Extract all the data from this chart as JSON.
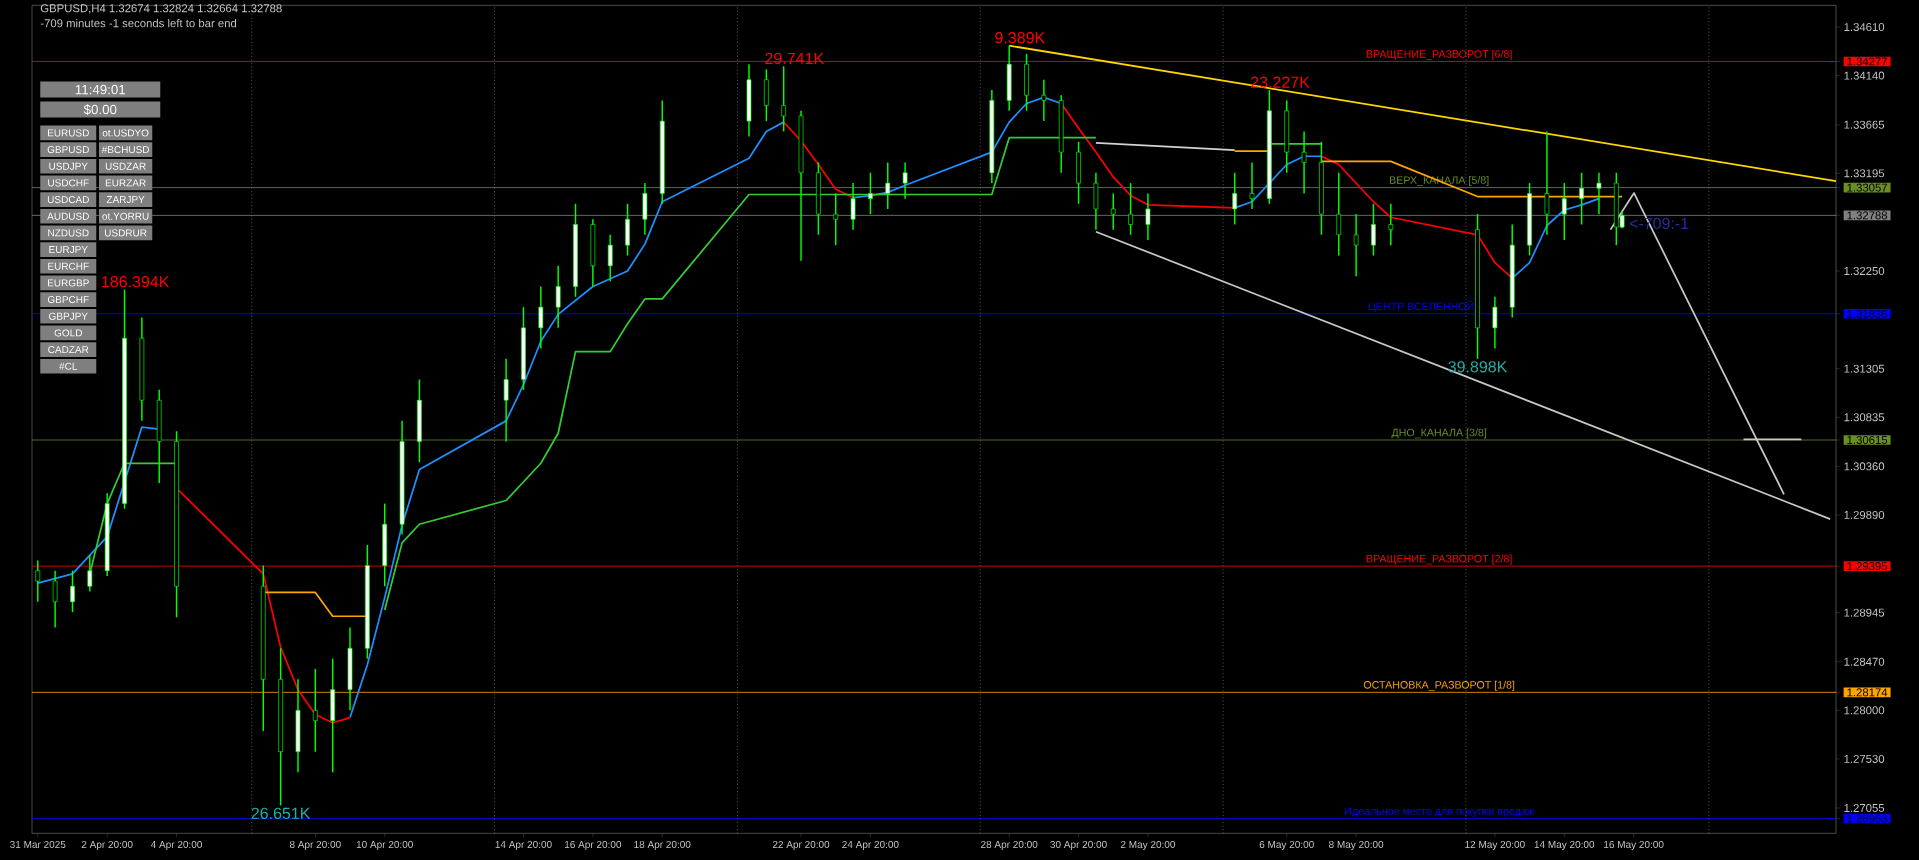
{
  "chart_data": {
    "type": "candlestick",
    "title": "GBPUSD,H4 1.32674 1.32824 1.32664 1.32788",
    "subtitle": "-709 minutes -1 seconds left to bar end",
    "color": "#00ff00",
    "x": [
      "2025-03-31T20:00",
      "2025-04-01T08:00",
      "2025-04-01T20:00",
      "2025-04-02T08:00",
      "2025-04-02T20:00",
      "2025-04-03T08:00",
      "2025-04-03T20:00",
      "2025-04-04T08:00",
      "2025-04-04T20:00",
      "2025-04-07T08:00",
      "2025-04-07T20:00",
      "2025-04-08T08:00",
      "2025-04-08T20:00",
      "2025-04-09T08:00",
      "2025-04-09T20:00",
      "2025-04-10T08:00",
      "2025-04-10T20:00",
      "2025-04-11T08:00",
      "2025-04-11T20:00",
      "2025-04-14T08:00",
      "2025-04-14T20:00",
      "2025-04-15T08:00",
      "2025-04-15T20:00",
      "2025-04-16T08:00",
      "2025-04-16T20:00",
      "2025-04-17T08:00",
      "2025-04-17T20:00",
      "2025-04-18T08:00",
      "2025-04-18T20:00",
      "2025-04-21T08:00",
      "2025-04-21T20:00",
      "2025-04-22T08:00",
      "2025-04-22T20:00",
      "2025-04-23T08:00",
      "2025-04-23T20:00",
      "2025-04-24T08:00",
      "2025-04-24T20:00",
      "2025-04-25T08:00",
      "2025-04-25T20:00",
      "2025-04-28T08:00",
      "2025-04-28T20:00",
      "2025-04-29T08:00",
      "2025-04-29T20:00",
      "2025-04-30T08:00",
      "2025-04-30T20:00",
      "2025-05-01T08:00",
      "2025-05-01T20:00",
      "2025-05-02T08:00",
      "2025-05-02T20:00",
      "2025-05-05T08:00",
      "2025-05-05T20:00",
      "2025-05-06T08:00",
      "2025-05-06T20:00",
      "2025-05-07T08:00",
      "2025-05-07T20:00",
      "2025-05-08T08:00",
      "2025-05-08T20:00",
      "2025-05-09T08:00",
      "2025-05-09T20:00",
      "2025-05-12T08:00",
      "2025-05-12T20:00",
      "2025-05-13T08:00",
      "2025-05-13T20:00",
      "2025-05-14T08:00",
      "2025-05-14T20:00",
      "2025-05-15T08:00",
      "2025-05-15T20:00",
      "2025-05-16T08:00",
      "2025-05-16T12:00"
    ],
    "ohlc": [
      [
        1.2935,
        1.2945,
        1.2905,
        1.2925
      ],
      [
        1.2925,
        1.2935,
        1.288,
        1.2905
      ],
      [
        1.2905,
        1.2935,
        1.2895,
        1.292
      ],
      [
        1.292,
        1.295,
        1.2915,
        1.2935
      ],
      [
        1.2935,
        1.301,
        1.293,
        1.3
      ],
      [
        1.3,
        1.3207,
        1.2995,
        1.316
      ],
      [
        1.316,
        1.318,
        1.308,
        1.31
      ],
      [
        1.31,
        1.311,
        1.302,
        1.306
      ],
      [
        1.306,
        1.307,
        1.289,
        1.292
      ],
      [
        1.292,
        1.294,
        1.278,
        1.283
      ],
      [
        1.283,
        1.286,
        1.2708,
        1.276
      ],
      [
        1.276,
        1.283,
        1.274,
        1.28
      ],
      [
        1.28,
        1.284,
        1.276,
        1.279
      ],
      [
        1.279,
        1.285,
        1.274,
        1.282
      ],
      [
        1.282,
        1.288,
        1.28,
        1.286
      ],
      [
        1.286,
        1.296,
        1.285,
        1.294
      ],
      [
        1.294,
        1.3,
        1.292,
        1.298
      ],
      [
        1.298,
        1.308,
        1.297,
        1.306
      ],
      [
        1.306,
        1.312,
        1.304,
        1.31
      ],
      [
        1.31,
        1.314,
        1.306,
        1.312
      ],
      [
        1.312,
        1.319,
        1.311,
        1.317
      ],
      [
        1.317,
        1.321,
        1.315,
        1.319
      ],
      [
        1.319,
        1.323,
        1.317,
        1.321
      ],
      [
        1.321,
        1.329,
        1.32,
        1.327
      ],
      [
        1.327,
        1.3275,
        1.321,
        1.323
      ],
      [
        1.323,
        1.326,
        1.3215,
        1.325
      ],
      [
        1.325,
        1.329,
        1.324,
        1.3275
      ],
      [
        1.3275,
        1.331,
        1.326,
        1.33
      ],
      [
        1.33,
        1.339,
        1.329,
        1.337
      ],
      [
        1.337,
        1.3425,
        1.3355,
        1.341
      ],
      [
        1.341,
        1.342,
        1.337,
        1.3385
      ],
      [
        1.3385,
        1.3423,
        1.336,
        1.3375
      ],
      [
        1.3375,
        1.338,
        1.3235,
        1.332
      ],
      [
        1.332,
        1.333,
        1.326,
        1.328
      ],
      [
        1.328,
        1.33,
        1.325,
        1.3275
      ],
      [
        1.3275,
        1.331,
        1.3265,
        1.3295
      ],
      [
        1.3295,
        1.332,
        1.328,
        1.33
      ],
      [
        1.33,
        1.333,
        1.3285,
        1.331
      ],
      [
        1.331,
        1.333,
        1.3295,
        1.332
      ],
      [
        1.332,
        1.34,
        1.331,
        1.339
      ],
      [
        1.339,
        1.3443,
        1.338,
        1.3425
      ],
      [
        1.3425,
        1.3435,
        1.338,
        1.3395
      ],
      [
        1.3395,
        1.341,
        1.337,
        1.339
      ],
      [
        1.339,
        1.3395,
        1.332,
        1.334
      ],
      [
        1.334,
        1.335,
        1.329,
        1.331
      ],
      [
        1.331,
        1.332,
        1.3265,
        1.3285
      ],
      [
        1.3285,
        1.33,
        1.3265,
        1.328
      ],
      [
        1.328,
        1.331,
        1.326,
        1.327
      ],
      [
        1.327,
        1.33,
        1.3255,
        1.3285
      ],
      [
        1.3285,
        1.332,
        1.327,
        1.33
      ],
      [
        1.33,
        1.333,
        1.3285,
        1.3295
      ],
      [
        1.3295,
        1.34,
        1.329,
        1.338
      ],
      [
        1.338,
        1.339,
        1.332,
        1.334
      ],
      [
        1.334,
        1.336,
        1.33,
        1.333
      ],
      [
        1.333,
        1.335,
        1.326,
        1.328
      ],
      [
        1.328,
        1.332,
        1.324,
        1.326
      ],
      [
        1.326,
        1.328,
        1.322,
        1.325
      ],
      [
        1.325,
        1.329,
        1.324,
        1.327
      ],
      [
        1.327,
        1.329,
        1.325,
        1.3265
      ],
      [
        1.3265,
        1.328,
        1.314,
        1.317
      ],
      [
        1.317,
        1.32,
        1.315,
        1.319
      ],
      [
        1.319,
        1.327,
        1.318,
        1.325
      ],
      [
        1.325,
        1.331,
        1.324,
        1.33
      ],
      [
        1.33,
        1.336,
        1.326,
        1.328
      ],
      [
        1.328,
        1.331,
        1.3255,
        1.3295
      ],
      [
        1.3295,
        1.332,
        1.327,
        1.3305
      ],
      [
        1.3305,
        1.332,
        1.328,
        1.331
      ],
      [
        1.331,
        1.332,
        1.325,
        1.32674
      ],
      [
        1.32674,
        1.32824,
        1.32664,
        1.32788
      ]
    ],
    "series": [
      {
        "type": "line",
        "color": "#1e90ff",
        "x": [
          "2025-03-31T20:00",
          "2025-04-01T20:00",
          "2025-04-02T20:00",
          "2025-04-03T20:00",
          "2025-04-04T08:00",
          "2025-04-04T20:00",
          "2025-04-09T20:00",
          "2025-04-10T08:00",
          "2025-04-10T20:00",
          "2025-04-11T08:00",
          "2025-04-11T20:00",
          "2025-04-14T08:00",
          "2025-04-14T20:00",
          "2025-04-15T08:00",
          "2025-04-15T20:00",
          "2025-04-16T20:00",
          "2025-04-17T20:00",
          "2025-04-18T08:00",
          "2025-04-18T20:00",
          "2025-04-21T08:00",
          "2025-04-21T20:00",
          "2025-04-22T08:00",
          "2025-04-22T20:00",
          "2025-04-24T08:00",
          "2025-04-24T20:00",
          "2025-04-25T08:00",
          "2025-04-25T20:00",
          "2025-04-28T08:00",
          "2025-04-28T20:00",
          "2025-04-29T08:00",
          "2025-04-29T20:00",
          "2025-04-30T08:00",
          "2025-04-30T20:00",
          "2025-05-05T08:00",
          "2025-05-05T20:00",
          "2025-05-06T08:00",
          "2025-05-06T20:00",
          "2025-05-07T08:00",
          "2025-05-07T20:00",
          "2025-05-08T08:00",
          "2025-05-13T08:00",
          "2025-05-13T20:00",
          "2025-05-14T08:00",
          "2025-05-14T20:00",
          "2025-05-15T08:00",
          "2025-05-15T20:00"
        ],
        "values": [
          1.2923,
          1.2932,
          1.2968,
          1.3074,
          1.3072,
          null,
          1.2793,
          1.2844,
          1.2909,
          1.2979,
          1.3033,
          1.308,
          1.3115,
          1.3157,
          1.3183,
          1.321,
          1.3225,
          1.3251,
          1.3292,
          1.3334,
          1.336,
          1.3369,
          null,
          1.3296,
          1.3298,
          1.3301,
          1.3308,
          1.334,
          1.3369,
          1.3387,
          1.3393,
          1.3387,
          null,
          1.3286,
          1.3292,
          1.331,
          1.3328,
          1.3336,
          1.3336,
          null,
          1.3218,
          1.3233,
          1.3269,
          1.3284,
          1.3289,
          1.3295
        ]
      },
      {
        "type": "line",
        "color": "#ff0000",
        "x": [
          "2025-04-04T20:00",
          "2025-04-07T08:00",
          "2025-04-07T20:00",
          "2025-04-08T08:00",
          "2025-04-08T20:00",
          "2025-04-09T08:00",
          "2025-04-09T20:00",
          "2025-04-10T08:00",
          "2025-04-22T08:00",
          "2025-04-22T20:00",
          "2025-04-23T08:00",
          "2025-04-23T20:00",
          "2025-04-24T08:00",
          "2025-04-24T20:00",
          "2025-04-30T08:00",
          "2025-04-30T20:00",
          "2025-05-01T08:00",
          "2025-05-01T20:00",
          "2025-05-02T08:00",
          "2025-05-02T20:00",
          "2025-05-05T08:00",
          "2025-05-05T20:00",
          "2025-05-07T20:00",
          "2025-05-08T08:00",
          "2025-05-08T20:00",
          "2025-05-09T08:00",
          "2025-05-09T20:00",
          "2025-05-12T08:00",
          "2025-05-12T20:00",
          "2025-05-13T08:00"
        ],
        "values": [
          1.3015,
          1.2932,
          1.2861,
          1.282,
          1.2796,
          1.2788,
          1.2793,
          null,
          1.3369,
          1.3351,
          1.3328,
          1.3304,
          1.3296,
          null,
          1.3387,
          1.3363,
          1.334,
          1.3316,
          1.3298,
          1.3289,
          1.3286,
          null,
          1.3336,
          1.3328,
          1.331,
          1.3292,
          1.3277,
          1.326,
          1.3233,
          1.3218
        ]
      },
      {
        "type": "line",
        "color": "#32cd32",
        "x": [
          "2025-04-02T08:00",
          "2025-04-02T20:00",
          "2025-04-03T08:00",
          "2025-04-04T20:00",
          "2025-04-07T08:00",
          "2025-04-10T20:00",
          "2025-04-11T08:00",
          "2025-04-11T20:00",
          "2025-04-14T08:00",
          "2025-04-14T20:00",
          "2025-04-15T08:00",
          "2025-04-15T20:00",
          "2025-04-16T08:00",
          "2025-04-17T08:00",
          "2025-04-17T20:00",
          "2025-04-18T08:00",
          "2025-04-18T20:00",
          "2025-04-21T08:00",
          "2025-04-28T08:00",
          "2025-04-28T20:00",
          "2025-05-01T08:00",
          "2025-05-01T20:00",
          "2025-05-06T08:00",
          "2025-05-07T20:00"
        ],
        "values": [
          1.2932,
          1.3,
          1.3039,
          1.3039,
          null,
          1.2897,
          1.2962,
          1.298,
          1.3003,
          1.3021,
          1.3039,
          1.3068,
          1.3147,
          1.3147,
          1.3174,
          1.3198,
          1.3198,
          1.3299,
          1.3299,
          1.3354,
          1.3354,
          null,
          1.3348,
          1.3348
        ]
      },
      {
        "type": "line",
        "color": "#ffa500",
        "x": [
          "2025-04-07T08:00",
          "2025-04-08T20:00",
          "2025-04-09T08:00",
          "2025-04-10T08:00",
          "2025-04-10T20:00",
          "2025-05-05T08:00",
          "2025-05-06T08:00",
          "2025-05-06T20:00",
          "2025-05-07T20:00",
          "2025-05-09T20:00",
          "2025-05-12T08:00",
          "2025-05-16T12:00"
        ],
        "values": [
          1.2914,
          1.2914,
          1.2891,
          1.2891,
          null,
          1.3341,
          1.3341,
          null,
          1.3331,
          1.3331,
          1.3297,
          1.3297
        ]
      },
      {
        "type": "line",
        "color": "#d3d3d3",
        "x": [
          "2025-05-01T08:00",
          "2025-05-05T08:00"
        ],
        "values": [
          1.3349,
          1.3342
        ]
      },
      {
        "type": "line",
        "color": "#ffd700",
        "x": [
          "2025-04-28T20:00",
          "2025-05-22T16:00"
        ],
        "values": [
          1.3443,
          1.3312
        ]
      },
      {
        "type": "line",
        "color": "#c8c8c8",
        "x": [
          "2025-05-01T08:00",
          "2025-05-22T12:00"
        ],
        "values": [
          1.3263,
          1.2985
        ]
      },
      {
        "type": "line",
        "color": "#c8c8c8",
        "x": [
          "2025-05-16T04:00",
          "2025-05-16T20:00"
        ],
        "values": [
          1.3265,
          1.33
        ]
      },
      {
        "type": "line",
        "color": "#c8c8c8",
        "x": [
          "2025-05-16T20:00",
          "2025-05-21T04:00"
        ],
        "values": [
          1.3301,
          1.3009
        ]
      },
      {
        "type": "line",
        "color": "#c8c8c8",
        "x": [
          "2025-05-20T00:00",
          "2025-05-21T16:00"
        ],
        "values": [
          1.3062,
          1.3062
        ]
      }
    ],
    "xlim": [
      "2025-03-31T16:00",
      "2025-05-22T16:00"
    ],
    "xticks": [
      {
        "value": "2025-03-31T20:00",
        "label": "31 Mar 2025"
      },
      {
        "value": "2025-04-02T20:00",
        "label": "2 Apr 20:00"
      },
      {
        "value": "2025-04-04T20:00",
        "label": "4 Apr 20:00"
      },
      {
        "value": "2025-04-08T20:00",
        "label": "8 Apr 20:00"
      },
      {
        "value": "2025-04-10T20:00",
        "label": "10 Apr 20:00"
      },
      {
        "value": "2025-04-14T20:00",
        "label": "14 Apr 20:00"
      },
      {
        "value": "2025-04-16T20:00",
        "label": "16 Apr 20:00"
      },
      {
        "value": "2025-04-18T20:00",
        "label": "18 Apr 20:00"
      },
      {
        "value": "2025-04-22T20:00",
        "label": "22 Apr 20:00"
      },
      {
        "value": "2025-04-24T20:00",
        "label": "24 Apr 20:00"
      },
      {
        "value": "2025-04-28T20:00",
        "label": "28 Apr 20:00"
      },
      {
        "value": "2025-04-30T20:00",
        "label": "30 Apr 20:00"
      },
      {
        "value": "2025-05-02T20:00",
        "label": "2 May 20:00"
      },
      {
        "value": "2025-05-06T20:00",
        "label": "6 May 20:00"
      },
      {
        "value": "2025-05-08T20:00",
        "label": "8 May 20:00"
      },
      {
        "value": "2025-05-12T20:00",
        "label": "12 May 20:00"
      },
      {
        "value": "2025-05-14T20:00",
        "label": "14 May 20:00"
      },
      {
        "value": "2025-05-16T20:00",
        "label": "16 May 20:00"
      }
    ],
    "ylim": [
      1.2681,
      1.3482
    ],
    "yticks": [
      {
        "value": 1.3461,
        "label": "1.34610"
      },
      1.34277,
      {
        "value": 1.3414,
        "label": "1.34140"
      },
      {
        "value": 1.33665,
        "label": "1.33665"
      },
      {
        "value": 1.33195,
        "label": "1.33195"
      },
      1.33057,
      1.32788,
      {
        "value": 1.3225,
        "label": "1.32250"
      },
      1.31836,
      {
        "value": 1.31305,
        "label": "1.31305"
      },
      {
        "value": 1.30835,
        "label": "1.30835"
      },
      1.30615,
      {
        "value": 1.3036,
        "label": "1.30360"
      },
      {
        "value": 1.2989,
        "label": "1.29890"
      },
      1.29395,
      {
        "value": 1.28945,
        "label": "1.28945"
      },
      {
        "value": 1.2847,
        "label": "1.28470"
      },
      1.28174,
      {
        "value": 1.28,
        "label": "1.28000"
      },
      {
        "value": 1.2753,
        "label": "1.27530"
      },
      {
        "value": 1.27055,
        "label": "1.27055"
      },
      1.26953
    ],
    "ref_lines": [
      {
        "axis": "y",
        "value": 1.34277,
        "label": "ВРАЩЕНИЕ_РАЗВОРОТ [6/8]",
        "color": "#ff0000"
      },
      {
        "axis": "y",
        "value": 1.33057,
        "label": "ВЕРХ_КАНАЛА [5/8]",
        "color": "#6b8e23"
      },
      {
        "axis": "y",
        "value": 1.32788,
        "color": "#808080"
      },
      {
        "axis": "y",
        "value": 1.31836,
        "label": "ЦЕНТР ВСЕЛЕННОЙ",
        "color": "#0000ff"
      },
      {
        "axis": "y",
        "value": 1.30615,
        "label": "ДНО_КАНАЛА [3/8]",
        "color": "#6b8e23"
      },
      {
        "axis": "y",
        "value": 1.29395,
        "label": "ВРАЩЕНИЕ_РАЗВОРОТ [2/8]",
        "color": "#ff0000"
      },
      {
        "axis": "y",
        "value": 1.28174,
        "label": "ОСТАНОВКА_РАЗВОРОТ [1/8]",
        "color": "#ffa500"
      },
      {
        "axis": "y",
        "value": 1.26953,
        "label": "Идеальное место для покупки продаж",
        "color": "#0000ff"
      },
      {
        "axis": "x",
        "value": "2025-04-07T00:00",
        "color": "#808080",
        "line_style": "dotted"
      },
      {
        "axis": "x",
        "value": "2025-04-14T00:00",
        "color": "#808080",
        "line_style": "dotted"
      },
      {
        "axis": "x",
        "value": "2025-04-21T00:00",
        "color": "#808080",
        "line_style": "dotted"
      },
      {
        "axis": "x",
        "value": "2025-04-28T00:00",
        "color": "#808080",
        "line_style": "dotted"
      },
      {
        "axis": "x",
        "value": "2025-05-05T00:00",
        "color": "#808080",
        "line_style": "dotted"
      },
      {
        "axis": "x",
        "value": "2025-05-12T00:00",
        "color": "#808080",
        "line_style": "dotted"
      },
      {
        "axis": "x",
        "value": "2025-05-19T00:00",
        "color": "#808080",
        "line_style": "dotted"
      }
    ],
    "annotations": [
      "11:49:01",
      "$0.00",
      "EURUSD",
      "GBPUSD",
      "USDJPY",
      "USDCHF",
      "USDCAD",
      "AUDUSD",
      "NZDUSD",
      "EURJPY",
      "EURCHF",
      "EURGBP",
      "GBPCHF",
      "GBPJPY",
      "GOLD",
      "CADZAR",
      "#CL",
      "ot.USDYO",
      "#BCHUSD",
      "USDZAR",
      "EURZAR",
      "ZARJPY",
      "ot.YORRU",
      "USDRUR",
      {
        "text": "186.394K",
        "x": "2025-04-03T08:00",
        "y": 1.3207
      },
      {
        "text": "29.741K",
        "x": "2025-04-22T08:00",
        "y": 1.3423
      },
      {
        "text": "9.389K",
        "x": "2025-04-28T20:00",
        "y": 1.3443
      },
      {
        "text": "23.227K",
        "x": "2025-05-06T08:00",
        "y": 1.34
      },
      {
        "text": "26.651K",
        "x": "2025-04-07T20:00",
        "y": 1.2708
      },
      {
        "text": "39.898K",
        "x": "2025-05-12T08:00",
        "y": 1.314
      },
      "<-709:-1"
    ]
  }
}
